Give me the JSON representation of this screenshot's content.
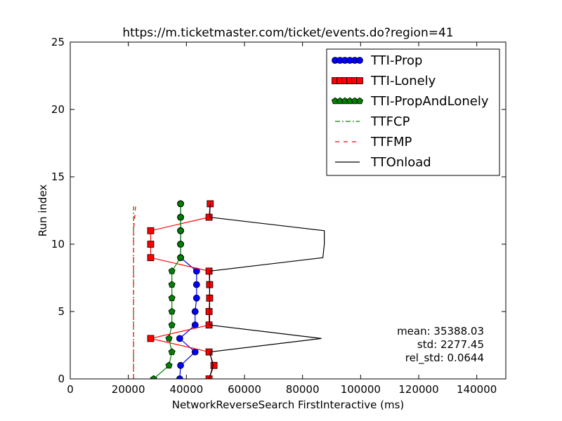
{
  "chart_data": {
    "type": "line",
    "title": "https://m.ticketmaster.com/ticket/events.do?region=41",
    "xlabel": "NetworkReverseSearch FirstInteractive (ms)",
    "ylabel": "Run index",
    "xlim": [
      0,
      150000
    ],
    "ylim": [
      0,
      25
    ],
    "xticks": [
      0,
      20000,
      40000,
      60000,
      80000,
      100000,
      120000,
      140000
    ],
    "xtick_labels": [
      "0",
      "20000",
      "40000",
      "60000",
      "80000",
      "100000",
      "120000",
      "140000"
    ],
    "yticks": [
      0,
      5,
      10,
      15,
      20,
      25
    ],
    "ytick_labels": [
      "0",
      "5",
      "10",
      "15",
      "20",
      "25"
    ],
    "grid": false,
    "legend_position": "top-right",
    "series": [
      {
        "name": "TTI-Prop",
        "color": "#0000ff",
        "marker": "circle",
        "line": "solid",
        "x": [
          37700,
          38000,
          43000,
          37700,
          43000,
          43000,
          43500,
          43500,
          43500,
          38000,
          38000,
          38000,
          38000,
          38000
        ],
        "y": [
          0,
          1,
          2,
          3,
          4,
          5,
          6,
          7,
          8,
          9,
          10,
          11,
          12,
          13
        ]
      },
      {
        "name": "TTI-Lonely",
        "color": "#ff0000",
        "marker": "square",
        "line": "solid",
        "x": [
          47800,
          49500,
          47800,
          27700,
          47800,
          47800,
          48000,
          48000,
          47800,
          27700,
          27700,
          27700,
          47800,
          48200
        ],
        "y": [
          0,
          1,
          2,
          3,
          4,
          5,
          6,
          7,
          8,
          9,
          10,
          11,
          12,
          13
        ]
      },
      {
        "name": "TTI-PropAndLonely",
        "color": "#008000",
        "marker": "pentagon",
        "line": "solid",
        "x": [
          28700,
          34000,
          35000,
          34000,
          35000,
          35000,
          35000,
          35000,
          35000,
          38000,
          38000,
          38000,
          38000,
          38000
        ],
        "y": [
          0,
          1,
          2,
          3,
          4,
          5,
          6,
          7,
          8,
          9,
          10,
          11,
          12,
          13
        ]
      },
      {
        "name": "TTFCP",
        "color": "#008000",
        "marker": "none",
        "line": "dashdot",
        "x": [
          21800,
          21800,
          21800,
          21800,
          21800,
          21800,
          21800,
          21800,
          21800,
          21800,
          21800,
          21800,
          21800
        ],
        "y": [
          0,
          1,
          2,
          3,
          4,
          5,
          6,
          7,
          8,
          9,
          10,
          11,
          12.8
        ]
      },
      {
        "name": "TTFMP",
        "color": "#ff0000",
        "marker": "none",
        "line": "dashed",
        "x": [
          21800,
          21800,
          21800,
          21800,
          21800,
          21800,
          21800,
          21800,
          21800,
          21800,
          21800,
          21800,
          22500
        ],
        "y": [
          0,
          1,
          2,
          3,
          4,
          5,
          6,
          7,
          8,
          9,
          10,
          11,
          12.8
        ]
      },
      {
        "name": "TTOnload",
        "color": "#000000",
        "marker": "none",
        "line": "solid",
        "x": [
          47800,
          49200,
          48000,
          86500,
          48000,
          48000,
          48000,
          48000,
          48000,
          87000,
          87500,
          87500,
          48000,
          48200
        ],
        "y": [
          0,
          1,
          2,
          3,
          4,
          5,
          6,
          7,
          8,
          9,
          10,
          11,
          12,
          13
        ]
      }
    ],
    "annotations": {
      "mean": "mean: 35388.03",
      "std": "std: 2277.45",
      "rel_std": "rel_std: 0.0644"
    }
  }
}
